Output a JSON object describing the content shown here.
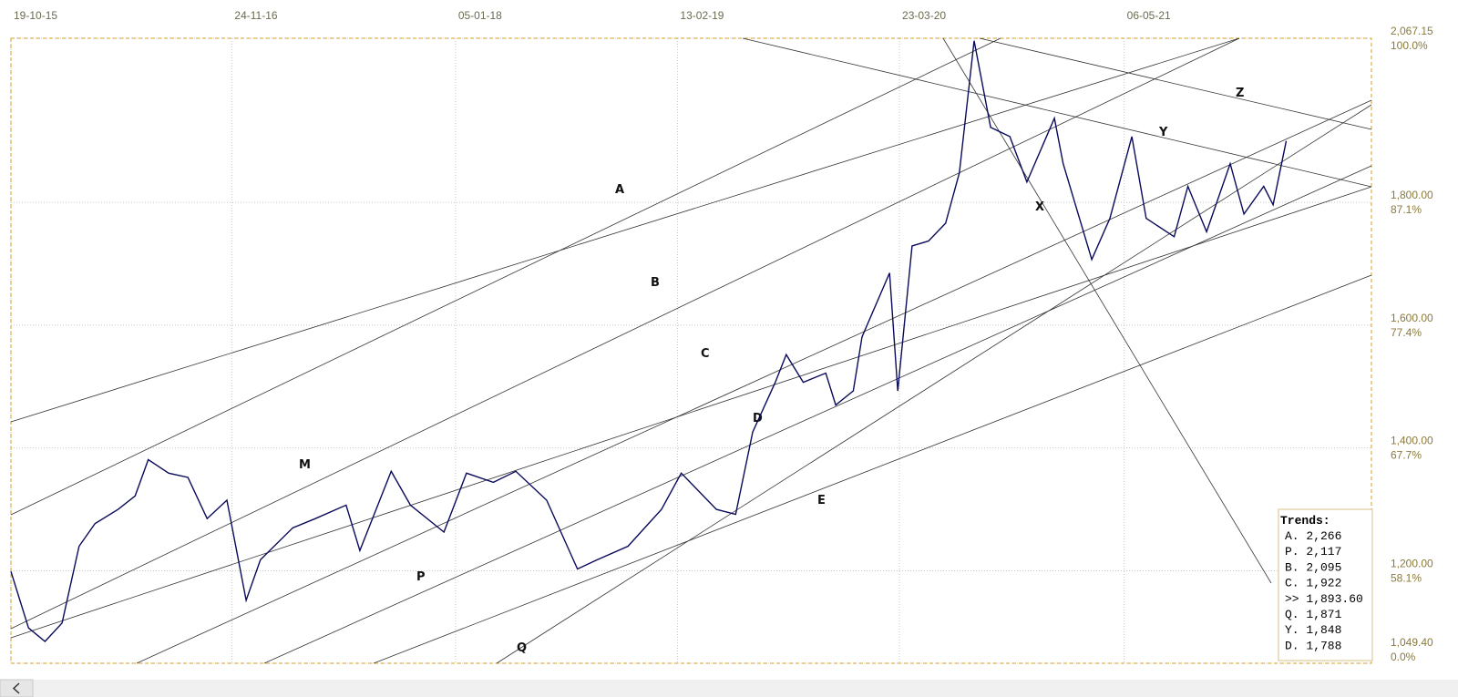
{
  "chart_data": {
    "type": "line",
    "x": [
      "2015-10-19",
      "2015-11-20",
      "2015-12-20",
      "2016-01-20",
      "2016-02-20",
      "2016-03-20",
      "2016-05-01",
      "2016-06-01",
      "2016-06-25",
      "2016-08-01",
      "2016-09-05",
      "2016-10-10",
      "2016-11-15",
      "2016-12-20",
      "2017-01-15",
      "2017-03-15",
      "2017-04-25",
      "2017-06-20",
      "2017-07-15",
      "2017-09-10",
      "2017-10-15",
      "2017-12-15",
      "2018-01-25",
      "2018-03-15",
      "2018-04-25",
      "2018-06-20",
      "2018-08-15",
      "2018-09-20",
      "2018-11-15",
      "2019-01-15",
      "2019-02-20",
      "2019-04-25",
      "2019-05-30",
      "2019-06-30",
      "2019-08-10",
      "2019-08-30",
      "2019-09-30",
      "2019-11-10",
      "2019-11-28",
      "2019-12-30",
      "2020-01-15",
      "2020-03-05",
      "2020-03-20",
      "2020-04-15",
      "2020-05-15",
      "2020-06-15",
      "2020-07-10",
      "2020-08-06",
      "2020-09-05",
      "2020-10-10",
      "2020-11-10",
      "2020-12-30",
      "2021-01-15",
      "2021-03-08",
      "2021-04-10",
      "2021-05-20",
      "2021-06-15",
      "2021-08-05",
      "2021-08-30",
      "2021-10-03",
      "2021-11-15",
      "2021-12-10",
      "2022-01-15",
      "2022-02-01",
      "2022-02-25"
    ],
    "series": [
      {
        "color": "#0a0a5a",
        "values": [
          1199,
          1107,
          1085,
          1115,
          1240,
          1277,
          1300,
          1322,
          1381,
          1359,
          1352,
          1285,
          1315,
          1152,
          1218,
          1270,
          1285,
          1307,
          1233,
          1362,
          1307,
          1263,
          1359,
          1344,
          1362,
          1315,
          1203,
          1218,
          1240,
          1300,
          1359,
          1300,
          1292,
          1426,
          1507,
          1552,
          1507,
          1522,
          1470,
          1493,
          1581,
          1685,
          1493,
          1729,
          1737,
          1766,
          1848,
          2063,
          1922,
          1907,
          1833,
          1937,
          1863,
          1707,
          1774,
          1907,
          1774,
          1744,
          1826,
          1752,
          1863,
          1781,
          1826,
          1796,
          1900
        ]
      }
    ],
    "xlim": [
      "2015-10-19",
      "2022-07-30"
    ],
    "xticks": [
      {
        "value": "2015-10-19",
        "label": "19-10-15"
      },
      {
        "value": "2016-11-24",
        "label": "24-11-16"
      },
      {
        "value": "2018-01-05",
        "label": "05-01-18"
      },
      {
        "value": "2019-02-13",
        "label": "13-02-19"
      },
      {
        "value": "2020-03-23",
        "label": "23-03-20"
      },
      {
        "value": "2021-05-06",
        "label": "06-05-21"
      }
    ],
    "ylim": [
      1049.4,
      2067.15
    ],
    "yticks": [
      {
        "value": 2067.15,
        "label": "2,067.15"
      },
      {
        "value": 1800,
        "label": "1,800.00"
      },
      {
        "value": 1600,
        "label": "1,600.00"
      },
      {
        "value": 1400,
        "label": "1,400.00"
      },
      {
        "value": 1200,
        "label": "1,200.00"
      },
      {
        "value": 1049.4,
        "label": "1,049.40"
      }
    ],
    "ytick_percent": [
      "100.0%",
      "87.1%",
      "77.4%",
      "67.7%",
      "58.1%",
      "0.0%"
    ],
    "grid": true,
    "line_labels": [
      "A",
      "B",
      "C",
      "D",
      "E",
      "M",
      "P",
      "Q",
      "X",
      "Y",
      "Z"
    ],
    "trends": {
      "title": "Trends:",
      "items": [
        "A. 2,266",
        "P. 2,117",
        "B. 2,095",
        "C. 1,922",
        ">> 1,893.60",
        "Q. 1,871",
        "Y. 1,848",
        "D. 1,788"
      ]
    }
  }
}
